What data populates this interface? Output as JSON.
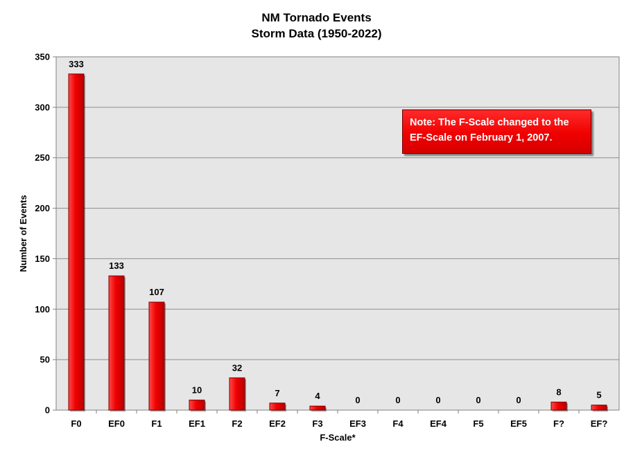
{
  "title": [
    "NM Tornado Events",
    "Storm Data  (1950-2022)"
  ],
  "note": [
    "Note: The F-Scale changed to the",
    "EF-Scale on February 1, 2007."
  ],
  "colors": {
    "bar": "#e60000",
    "bar_edge": "#7a0000",
    "plot_background": "#e6e6e6",
    "gridline": "#8c8c8c",
    "note_background": "#ff0000",
    "note_text": "#ffffff"
  },
  "chart_data": {
    "type": "bar",
    "title": "NM Tornado Events",
    "subtitle": "Storm Data  (1950-2022)",
    "xlabel": "F-Scale*",
    "ylabel": "Number of Events",
    "categories": [
      "F0",
      "EF0",
      "F1",
      "EF1",
      "F2",
      "EF2",
      "F3",
      "EF3",
      "F4",
      "EF4",
      "F5",
      "EF5",
      "F?",
      "EF?"
    ],
    "values": [
      333,
      133,
      107,
      10,
      32,
      7,
      4,
      0,
      0,
      0,
      0,
      0,
      8,
      5
    ],
    "ylim": [
      0,
      350
    ],
    "yticks": [
      0,
      50,
      100,
      150,
      200,
      250,
      300,
      350
    ],
    "grid": true,
    "data_labels": true,
    "annotation": "Note: The F-Scale changed to the EF-Scale on February 1, 2007."
  }
}
